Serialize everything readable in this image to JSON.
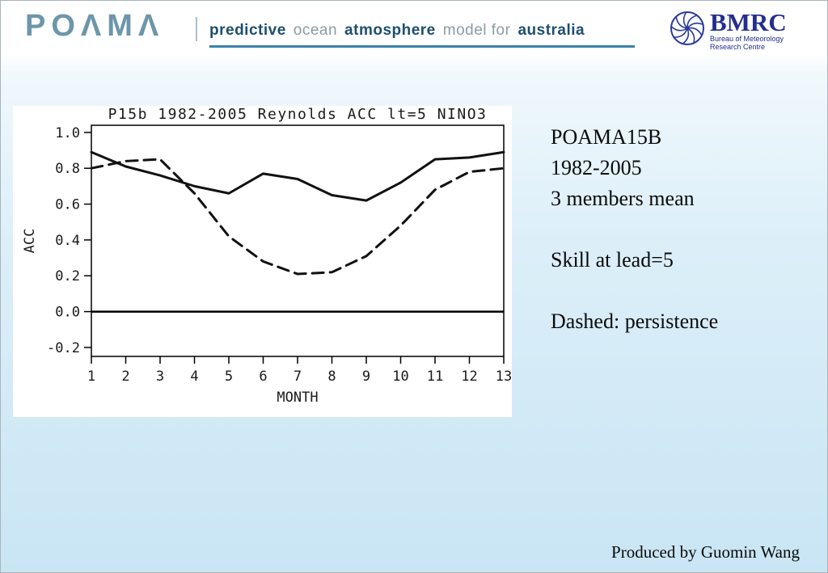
{
  "header": {
    "logo": "POΛMΛ",
    "tagline": {
      "parts": [
        {
          "text": "predictive",
          "bold": true
        },
        {
          "text": "ocean",
          "bold": false
        },
        {
          "text": "atmosphere",
          "bold": true
        },
        {
          "text": "model for",
          "bold": false
        },
        {
          "text": "australia",
          "bold": true
        }
      ]
    },
    "bmrc": {
      "name": "BMRC",
      "line1": "Bureau of Meteorology",
      "line2": "Research Centre"
    }
  },
  "chart_data": {
    "type": "line",
    "title": "P15b 1982-2005 Reynolds ACC lt=5 NINO3",
    "xlabel": "MONTH",
    "ylabel": "ACC",
    "x": [
      1,
      2,
      3,
      4,
      5,
      6,
      7,
      8,
      9,
      10,
      11,
      12,
      13
    ],
    "xlim": [
      1,
      13
    ],
    "ylim": [
      -0.25,
      1.04
    ],
    "yticks": [
      "1.0",
      "0.8",
      "0.6",
      "0.4",
      "0.2",
      "0.0",
      "-0.2"
    ],
    "grid": false,
    "legend": "none",
    "zero_line": 0.0,
    "series": [
      {
        "name": "model",
        "style": "solid",
        "values": [
          0.89,
          0.81,
          0.76,
          0.7,
          0.66,
          0.77,
          0.74,
          0.65,
          0.62,
          0.72,
          0.85,
          0.86,
          0.89
        ]
      },
      {
        "name": "persistence",
        "style": "dashed",
        "values": [
          0.8,
          0.84,
          0.85,
          0.66,
          0.42,
          0.28,
          0.21,
          0.22,
          0.31,
          0.48,
          0.68,
          0.78,
          0.8
        ]
      }
    ]
  },
  "annotation": {
    "lines": [
      "POAMA15B",
      "1982-2005",
      "3 members mean",
      "",
      "Skill at lead=5",
      "",
      "Dashed: persistence"
    ]
  },
  "footer": {
    "credit": "Produced by Guomin Wang"
  }
}
